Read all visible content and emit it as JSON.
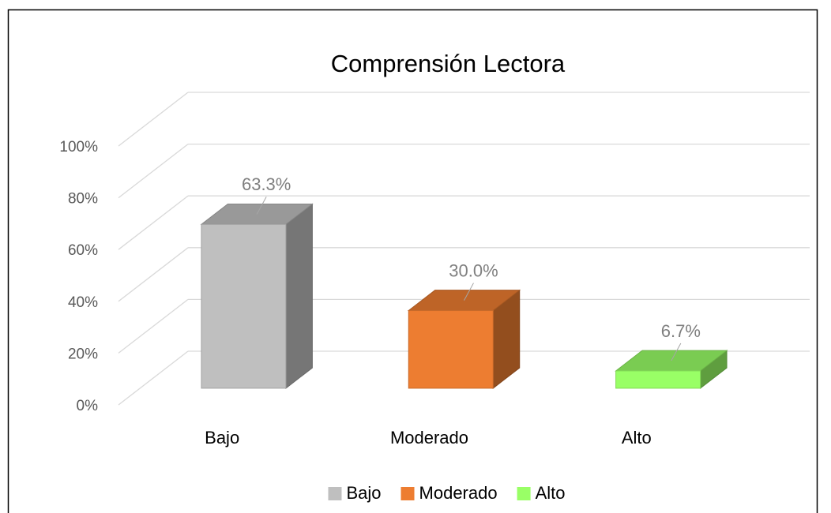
{
  "chart_data": {
    "type": "bar3d",
    "title": "Comprensión Lectora",
    "categories": [
      "Bajo",
      "Moderado",
      "Alto"
    ],
    "values": [
      63.3,
      30.0,
      6.7
    ],
    "value_labels": [
      "63.3%",
      "30.0%",
      "6.7%"
    ],
    "colors": [
      "#bfbfbf",
      "#ed7d31",
      "#99ff66"
    ],
    "ylim": [
      0,
      100
    ],
    "yticks": [
      {
        "value": 0,
        "label": "0%"
      },
      {
        "value": 20,
        "label": "20%"
      },
      {
        "value": 40,
        "label": "40%"
      },
      {
        "value": 60,
        "label": "60%"
      },
      {
        "value": 80,
        "label": "80%"
      },
      {
        "value": 100,
        "label": "100%"
      }
    ],
    "grid": true,
    "legend": "bottom"
  }
}
